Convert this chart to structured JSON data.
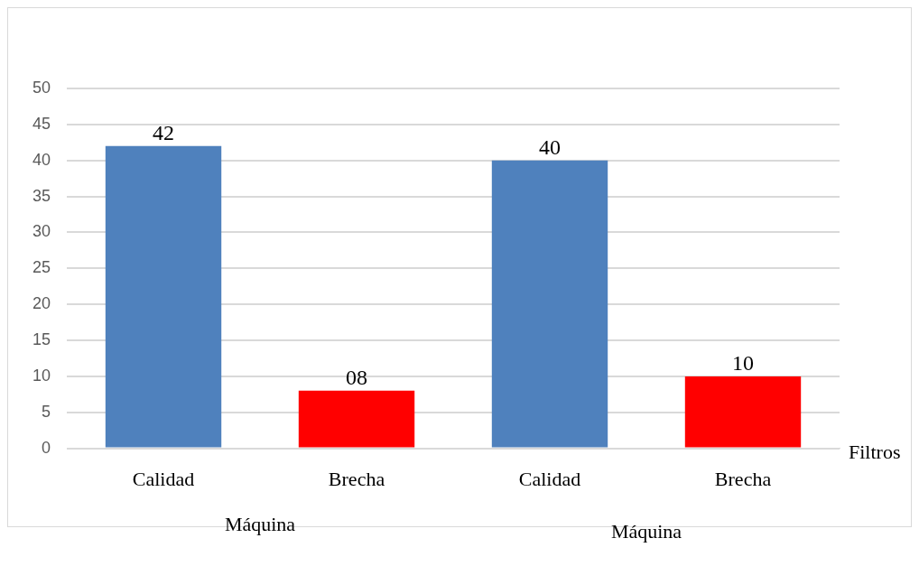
{
  "chart_data": {
    "type": "bar",
    "categories": [
      "Calidad",
      "Brecha",
      "Calidad",
      "Brecha"
    ],
    "values": [
      42,
      8,
      40,
      10
    ],
    "colors": [
      "#4f81bd",
      "#ff0000",
      "#4f81bd",
      "#ff0000"
    ],
    "value_labels": [
      "42",
      "08",
      "40",
      "10"
    ],
    "xlabel": "Filtros",
    "annotations": [
      "Máquina",
      "Máquina"
    ],
    "ylim": [
      0,
      50
    ],
    "yticks": [
      0,
      5,
      10,
      15,
      20,
      25,
      30,
      35,
      40,
      45,
      50
    ],
    "grid": "y",
    "legend": false
  }
}
